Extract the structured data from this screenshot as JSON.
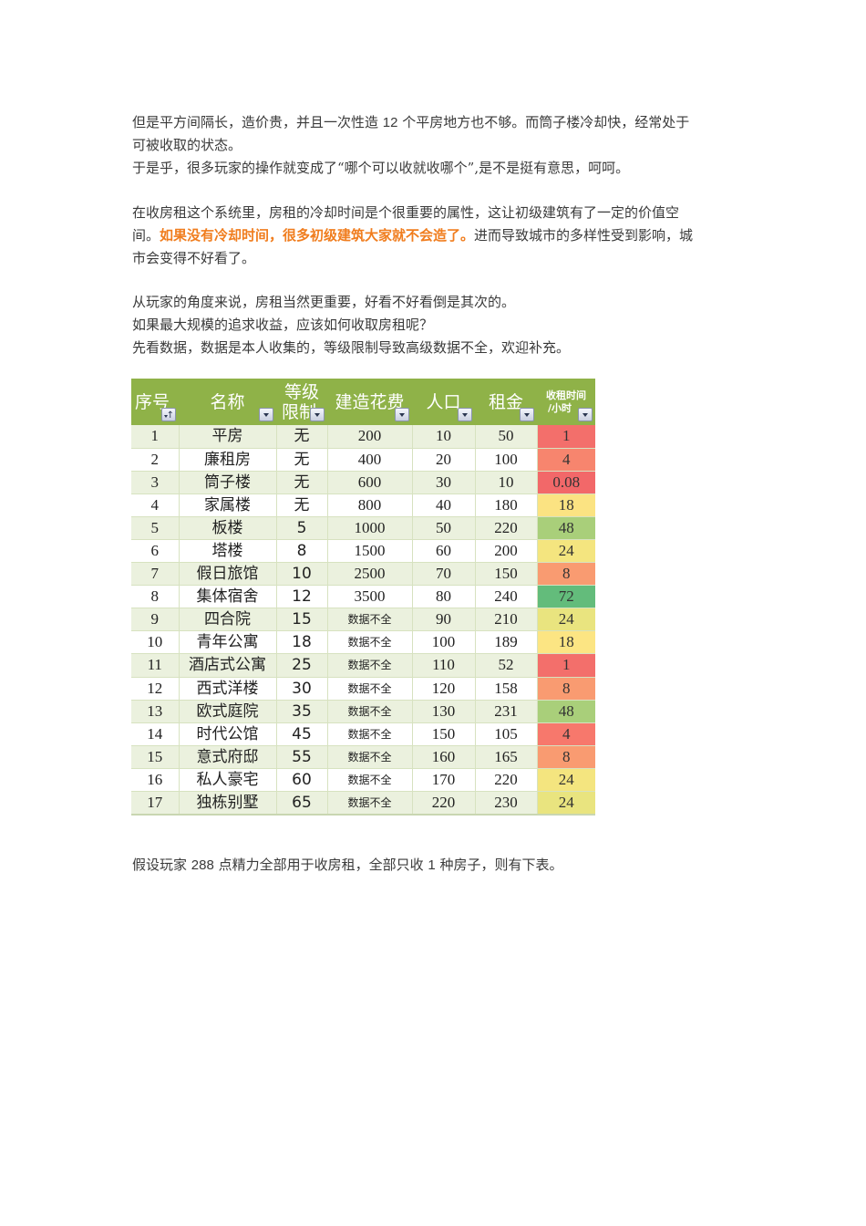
{
  "paragraphs": {
    "p1": {
      "line1_a": "但是平方间隔长，造价贵，并且一次性造 ",
      "line1_num": "12",
      "line1_b": " 个平房地方也不够。而筒子楼冷却快，经常处于",
      "line2": "可被收取的状态。",
      "line3": "于是乎，很多玩家的操作就变成了“哪个可以收就收哪个”,是不是挺有意思，呵呵。"
    },
    "p2": {
      "line1": "在收房租这个系统里，房租的冷却时间是个很重要的属性，这让初级建筑有了一定的价值空",
      "line2_a": "间。",
      "line2_highlight": "如果没有冷却时间，很多初级建筑大家就不会造了。",
      "line2_b": "进而导致城市的多样性受到影响，城",
      "line3": "市会变得不好看了。"
    },
    "p3": {
      "line1": "从玩家的角度来说，房租当然更重要，好看不好看倒是其次的。",
      "line2": "如果最大规模的追求收益，应该如何收取房租呢？",
      "line3": "先看数据，数据是本人收集的，等级限制导致高级数据不全，欢迎补充。"
    },
    "p4": {
      "a": "假设玩家 ",
      "num1": "288",
      "b": " 点精力全部用于收房租，全部只收 ",
      "num2": "1",
      "c": " 种房子，则有下表。"
    }
  },
  "highlight_color": "#f07d1e",
  "table": {
    "header_color": "#8fb248",
    "headers": {
      "index": "序号",
      "name": "名称",
      "level_line1": "等级",
      "level_line2": "限制",
      "cost": "建造花费",
      "population": "人口",
      "rent": "租金",
      "time_line1": "收租时间",
      "time_line2": "/小时"
    },
    "rows": [
      {
        "index": "1",
        "name": "平房",
        "level": "无",
        "cost": "200",
        "population": "10",
        "rent": "50",
        "time": "1",
        "time_color": "#f36f6b"
      },
      {
        "index": "2",
        "name": "廉租房",
        "level": "无",
        "cost": "400",
        "population": "20",
        "rent": "100",
        "time": "4",
        "time_color": "#f7856e"
      },
      {
        "index": "3",
        "name": "筒子楼",
        "level": "无",
        "cost": "600",
        "population": "30",
        "rent": "10",
        "time": "0.08",
        "time_color": "#f26869"
      },
      {
        "index": "4",
        "name": "家属楼",
        "level": "无",
        "cost": "800",
        "population": "40",
        "rent": "180",
        "time": "18",
        "time_color": "#fbe382"
      },
      {
        "index": "5",
        "name": "板楼",
        "level": "5",
        "cost": "1000",
        "population": "50",
        "rent": "220",
        "time": "48",
        "time_color": "#a9cf7a"
      },
      {
        "index": "6",
        "name": "塔楼",
        "level": "8",
        "cost": "1500",
        "population": "60",
        "rent": "200",
        "time": "24",
        "time_color": "#f4e57f"
      },
      {
        "index": "7",
        "name": "假日旅馆",
        "level": "10",
        "cost": "2500",
        "population": "70",
        "rent": "150",
        "time": "8",
        "time_color": "#f99b71"
      },
      {
        "index": "8",
        "name": "集体宿舍",
        "level": "12",
        "cost": "3500",
        "population": "80",
        "rent": "240",
        "time": "72",
        "time_color": "#63bc7b"
      },
      {
        "index": "9",
        "name": "四合院",
        "level": "15",
        "cost": "数据不全",
        "population": "90",
        "rent": "210",
        "time": "24",
        "time_color": "#e9e47f"
      },
      {
        "index": "10",
        "name": "青年公寓",
        "level": "18",
        "cost": "数据不全",
        "population": "100",
        "rent": "189",
        "time": "18",
        "time_color": "#fce583"
      },
      {
        "index": "11",
        "name": "酒店式公寓",
        "level": "25",
        "cost": "数据不全",
        "population": "110",
        "rent": "52",
        "time": "1",
        "time_color": "#f36f6b"
      },
      {
        "index": "12",
        "name": "西式洋楼",
        "level": "30",
        "cost": "数据不全",
        "population": "120",
        "rent": "158",
        "time": "8",
        "time_color": "#f99b71"
      },
      {
        "index": "13",
        "name": "欧式庭院",
        "level": "35",
        "cost": "数据不全",
        "population": "130",
        "rent": "231",
        "time": "48",
        "time_color": "#a9cf7a"
      },
      {
        "index": "14",
        "name": "时代公馆",
        "level": "45",
        "cost": "数据不全",
        "population": "150",
        "rent": "105",
        "time": "4",
        "time_color": "#f7786c"
      },
      {
        "index": "15",
        "name": "意式府邸",
        "level": "55",
        "cost": "数据不全",
        "population": "160",
        "rent": "165",
        "time": "8",
        "time_color": "#f99b71"
      },
      {
        "index": "16",
        "name": "私人豪宅",
        "level": "60",
        "cost": "数据不全",
        "population": "170",
        "rent": "220",
        "time": "24",
        "time_color": "#f4e57f"
      },
      {
        "index": "17",
        "name": "独栋别墅",
        "level": "65",
        "cost": "数据不全",
        "population": "220",
        "rent": "230",
        "time": "24",
        "time_color": "#e9e47f"
      }
    ]
  }
}
